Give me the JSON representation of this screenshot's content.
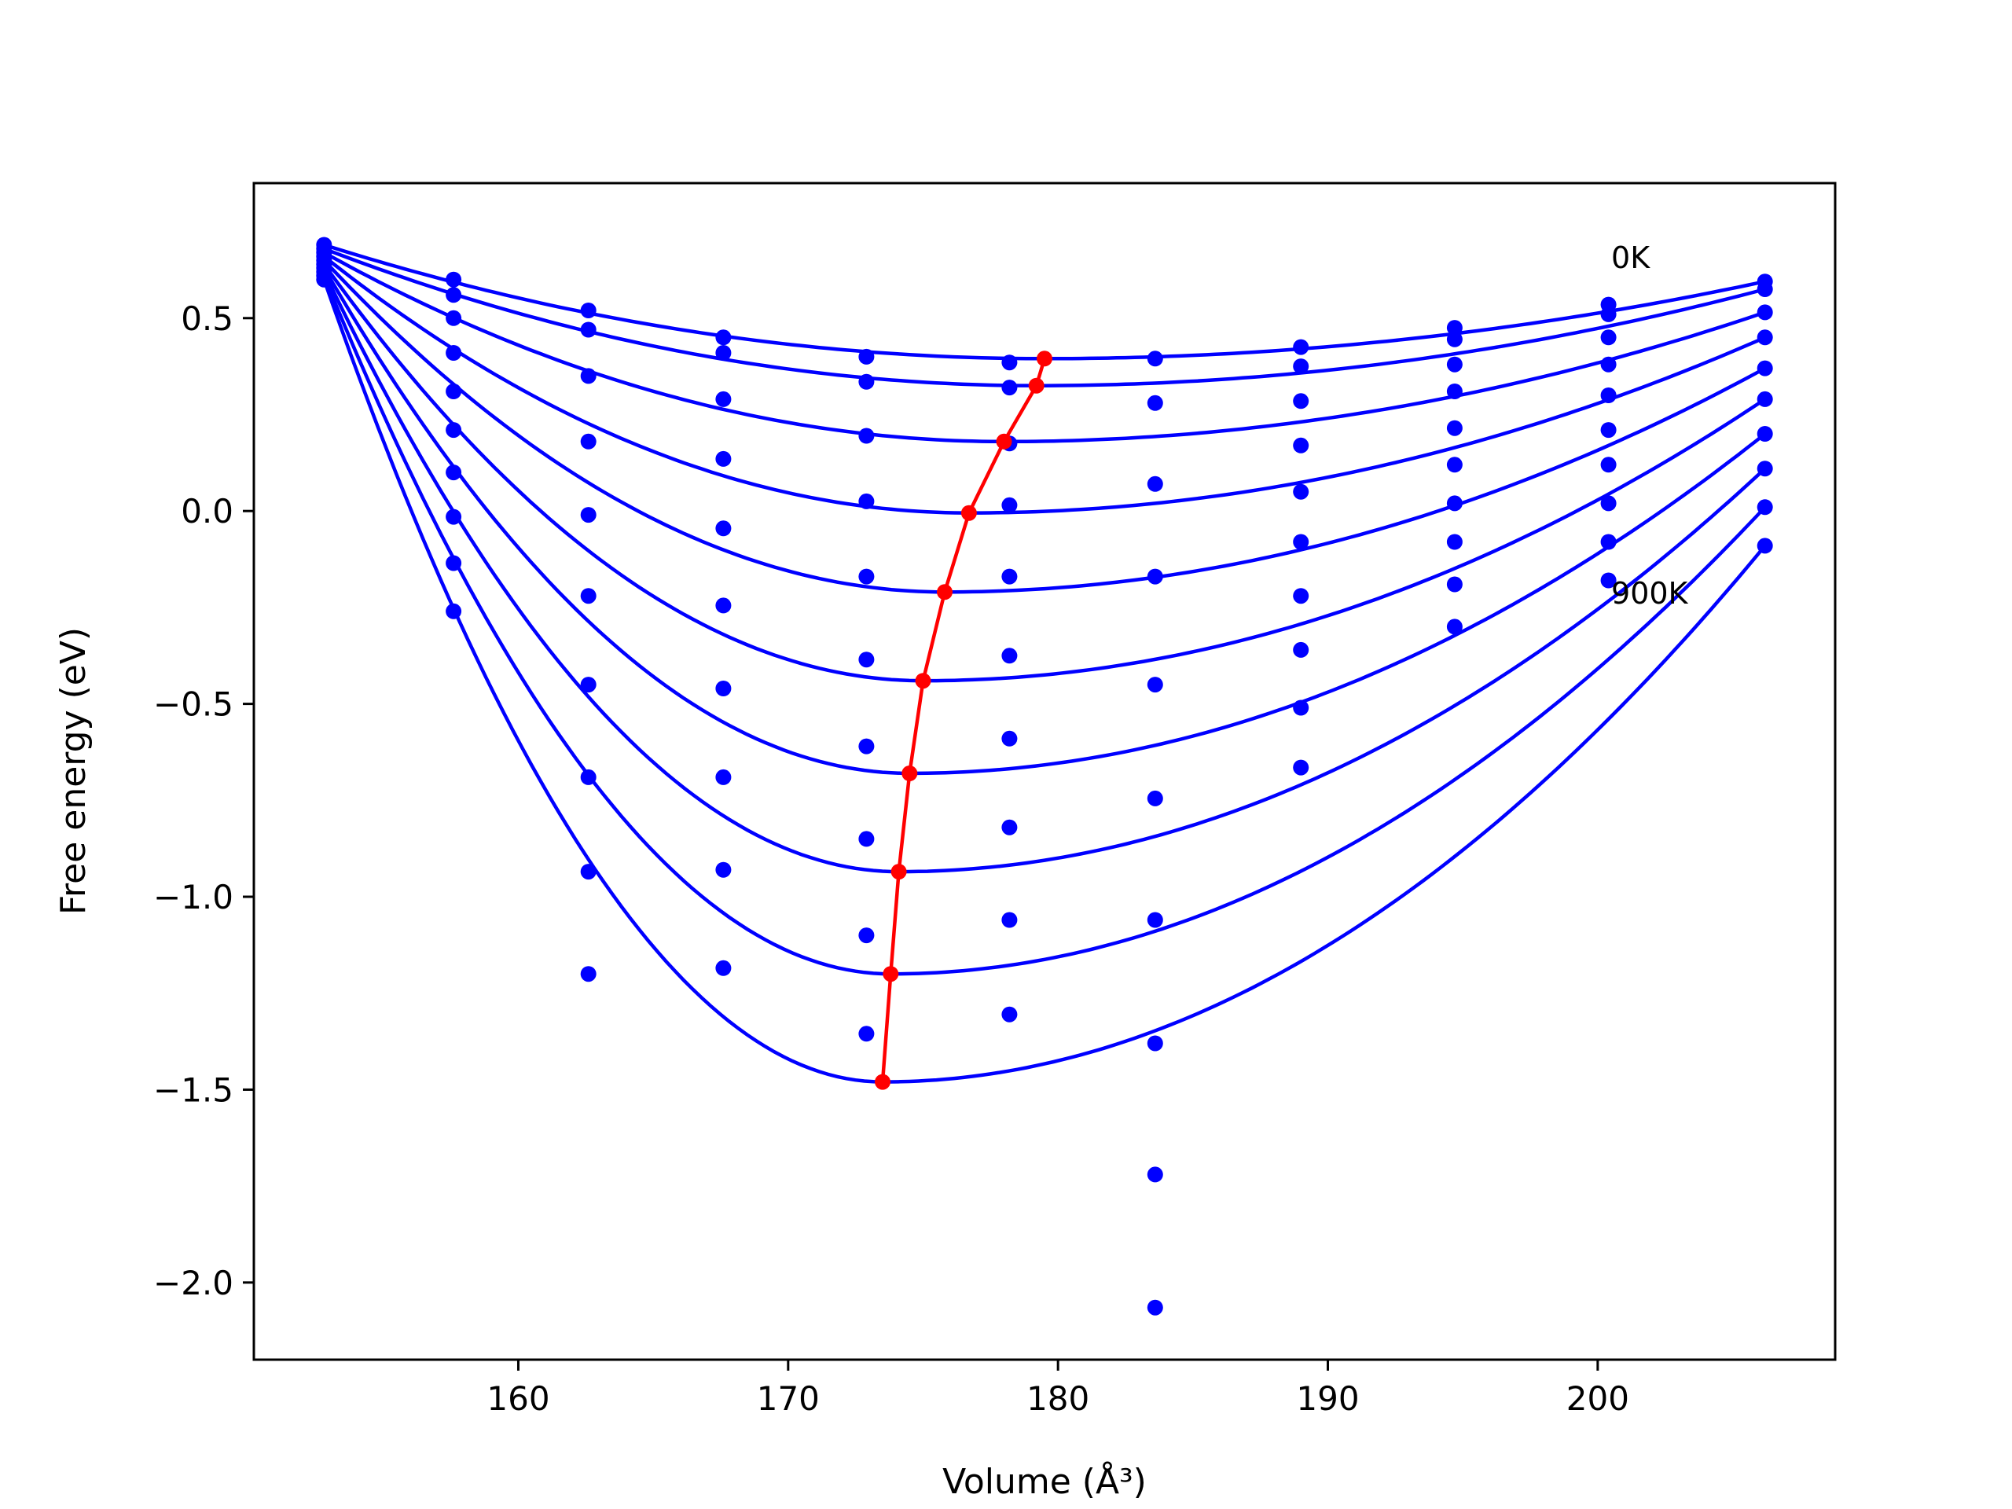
{
  "chart_data": {
    "type": "line",
    "xlabel": "Volume (Å³)",
    "ylabel": "Free energy (eV)",
    "xlim": [
      150.2,
      208.8
    ],
    "ylim": [
      -2.2,
      0.85
    ],
    "xticks": [
      160,
      170,
      180,
      190,
      200
    ],
    "xtick_labels": [
      "160",
      "170",
      "180",
      "190",
      "200"
    ],
    "yticks": [
      0.5,
      0.0,
      -0.5,
      -1.0,
      -1.5,
      -2.0
    ],
    "ytick_labels": [
      "0.5",
      "0.0",
      "−0.5",
      "−1.0",
      "−1.5",
      "−2.0"
    ],
    "grid": false,
    "annotations": [
      {
        "text": "0K",
        "x": 200.5,
        "y": 0.63
      },
      {
        "text": "900K",
        "x": 200.5,
        "y": -0.24
      }
    ],
    "volumes": [
      152.8,
      157.6,
      162.6,
      167.6,
      172.9,
      178.2,
      183.6,
      189.0,
      194.7,
      200.4,
      206.2
    ],
    "series_color": "#0000ff",
    "min_color": "#ff0000",
    "series": [
      {
        "fit": {
          "min_v": 179.5,
          "min_e": 0.395,
          "left": 0.69,
          "right": 0.595
        },
        "points": [
          0.69,
          0.6,
          0.52,
          0.45,
          0.4,
          0.385,
          0.395,
          0.425,
          0.475,
          0.535,
          0.595
        ]
      },
      {
        "fit": {
          "min_v": 179.2,
          "min_e": 0.325,
          "left": 0.68,
          "right": 0.575
        },
        "points": [
          0.68,
          0.56,
          0.47,
          0.41,
          0.335,
          0.32,
          0.28,
          0.375,
          0.445,
          0.51,
          0.575
        ]
      },
      {
        "fit": {
          "min_v": 178.0,
          "min_e": 0.18,
          "left": 0.67,
          "right": 0.515
        },
        "points": [
          0.67,
          0.5,
          0.35,
          0.29,
          0.195,
          0.175,
          0.07,
          0.285,
          0.38,
          0.45,
          0.515
        ]
      },
      {
        "fit": {
          "min_v": 176.7,
          "min_e": -0.005,
          "left": 0.66,
          "right": 0.45
        },
        "points": [
          0.66,
          0.41,
          0.18,
          0.135,
          0.025,
          0.015,
          -0.17,
          0.17,
          0.31,
          0.38,
          0.45
        ]
      },
      {
        "fit": {
          "min_v": 175.8,
          "min_e": -0.21,
          "left": 0.65,
          "right": 0.37
        },
        "points": [
          0.65,
          0.31,
          -0.01,
          -0.045,
          -0.17,
          -0.17,
          -0.45,
          0.05,
          0.215,
          0.3,
          0.37
        ]
      },
      {
        "fit": {
          "min_v": 175.0,
          "min_e": -0.44,
          "left": 0.64,
          "right": 0.29
        },
        "points": [
          0.64,
          0.21,
          -0.22,
          -0.245,
          -0.385,
          -0.375,
          -0.745,
          -0.08,
          0.12,
          0.21,
          0.29
        ]
      },
      {
        "fit": {
          "min_v": 174.5,
          "min_e": -0.68,
          "left": 0.63,
          "right": 0.2
        },
        "points": [
          0.63,
          0.1,
          -0.45,
          -0.46,
          -0.61,
          -0.59,
          -1.06,
          -0.22,
          0.02,
          0.12,
          0.2
        ]
      },
      {
        "fit": {
          "min_v": 174.1,
          "min_e": -0.935,
          "left": 0.62,
          "right": 0.11
        },
        "points": [
          0.62,
          -0.015,
          -0.69,
          -0.69,
          -0.85,
          -0.82,
          -1.38,
          -0.36,
          -0.08,
          0.02,
          0.11
        ]
      },
      {
        "fit": {
          "min_v": 173.8,
          "min_e": -1.2,
          "left": 0.61,
          "right": 0.01
        },
        "points": [
          0.61,
          -0.135,
          -0.935,
          -0.93,
          -1.1,
          -1.06,
          -1.72,
          -0.51,
          -0.19,
          -0.08,
          0.01
        ]
      },
      {
        "fit": {
          "min_v": 173.5,
          "min_e": -1.48,
          "left": 0.6,
          "right": -0.09
        },
        "points": [
          0.6,
          -0.26,
          -1.2,
          -1.185,
          -1.355,
          -1.305,
          -2.065,
          -0.665,
          -0.3,
          -0.18,
          -0.09
        ]
      }
    ],
    "minima_line": {
      "x": [
        179.5,
        179.2,
        178.0,
        176.7,
        175.8,
        175.0,
        174.5,
        174.1,
        173.8,
        173.5
      ],
      "y": [
        0.395,
        0.325,
        0.18,
        -0.005,
        -0.21,
        -0.44,
        -0.68,
        -0.935,
        -1.2,
        -1.48
      ]
    }
  }
}
